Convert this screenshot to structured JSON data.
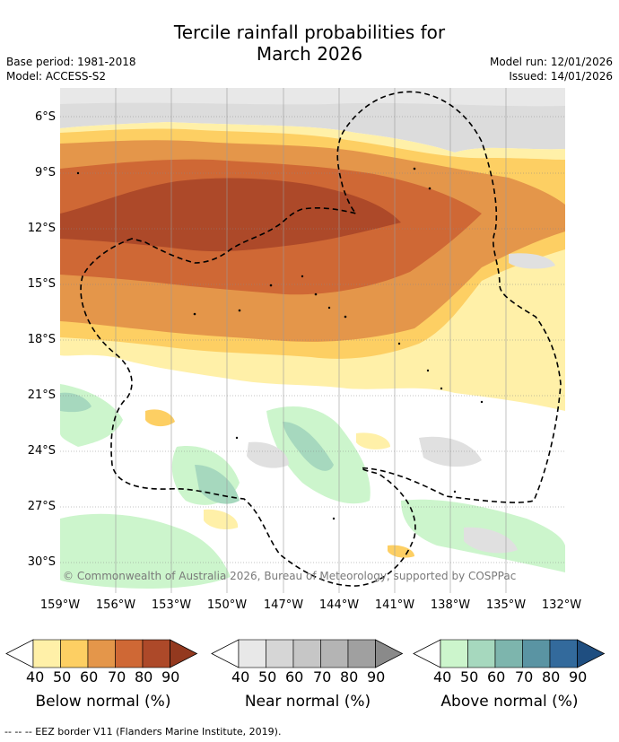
{
  "title_line1": "Tercile rainfall probabilities for",
  "title_line2": "March 2026",
  "base_period": "Base period: 1981-2018",
  "model": "Model: ACCESS-S2",
  "model_run": "Model run: 12/01/2026",
  "issued": "Issued: 14/01/2026",
  "credit": "© Commonwealth of Australia 2026, Bureau of Meteorology, supported by COSPPac",
  "eez_note": "-- -- -- EEZ border V11 (Flanders Marine Institute, 2019).",
  "lat_labels": [
    "6°S",
    "9°S",
    "12°S",
    "15°S",
    "18°S",
    "21°S",
    "24°S",
    "27°S",
    "30°S"
  ],
  "lon_labels": [
    "159°W",
    "156°W",
    "153°W",
    "150°W",
    "147°W",
    "144°W",
    "141°W",
    "138°W",
    "135°W",
    "132°W"
  ],
  "colorbars": [
    {
      "title": "Below normal (%)",
      "ticks": [
        "40",
        "50",
        "60",
        "70",
        "80",
        "90"
      ],
      "colors": [
        "#fff0a8",
        "#fdcf63",
        "#e4964a",
        "#cf6835",
        "#ad4929",
        "#93391f"
      ]
    },
    {
      "title": "Near normal (%)",
      "ticks": [
        "40",
        "50",
        "60",
        "70",
        "80",
        "90"
      ],
      "colors": [
        "#e8e8e8",
        "#d6d6d6",
        "#c6c6c6",
        "#b4b4b4",
        "#a0a0a0",
        "#8a8a8a"
      ]
    },
    {
      "title": "Above normal (%)",
      "ticks": [
        "40",
        "50",
        "60",
        "70",
        "80",
        "90"
      ],
      "colors": [
        "#ccf5cc",
        "#a6d8be",
        "#7db5ad",
        "#5a94a3",
        "#336a9c",
        "#1f4e80"
      ]
    }
  ],
  "colors": {
    "background": "#ffffff",
    "gridline": "#888888",
    "eez": "#000000"
  }
}
